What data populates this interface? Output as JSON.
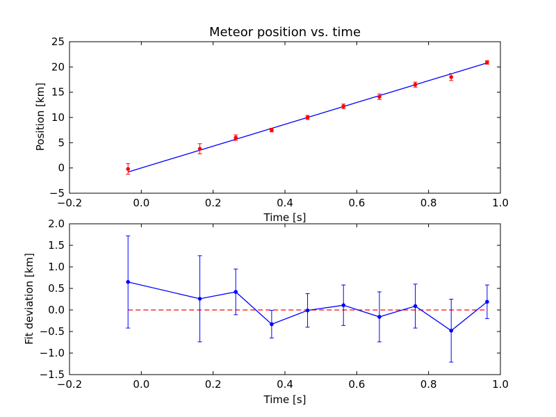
{
  "chart_data": [
    {
      "type": "line",
      "title": "Meteor position vs. time",
      "xlabel": "Time [s]",
      "ylabel": "Position [km]",
      "xlim": [
        -0.2,
        1.0
      ],
      "ylim": [
        -5,
        25
      ],
      "xticks": [
        "−0.2",
        "0.0",
        "0.2",
        "0.4",
        "0.6",
        "0.8",
        "1.0"
      ],
      "yticks": [
        "−5",
        "0",
        "5",
        "10",
        "15",
        "20",
        "25"
      ],
      "grid": false,
      "colors": {
        "data": "#ff0000",
        "fit": "#0000ff"
      },
      "series": [
        {
          "kind": "errorbar",
          "x": [
            -0.037,
            0.163,
            0.263,
            0.363,
            0.463,
            0.563,
            0.663,
            0.763,
            0.863,
            0.963
          ],
          "y": [
            -0.2,
            3.8,
            6.0,
            7.5,
            10.0,
            12.2,
            14.1,
            16.5,
            18.0,
            20.9
          ],
          "err": [
            1.05,
            1.0,
            0.55,
            0.35,
            0.4,
            0.45,
            0.55,
            0.5,
            0.7,
            0.35
          ]
        },
        {
          "kind": "fit",
          "x": [
            -0.037,
            0.963
          ],
          "y": [
            -0.8,
            20.8
          ]
        }
      ]
    },
    {
      "type": "line",
      "title": "",
      "xlabel": "Time [s]",
      "ylabel": "Fit deviation [km]",
      "xlim": [
        -0.2,
        1.0
      ],
      "ylim": [
        -1.5,
        2.0
      ],
      "xticks": [
        "−0.2",
        "0.0",
        "0.2",
        "0.4",
        "0.6",
        "0.8",
        "1.0"
      ],
      "yticks": [
        "−1.5",
        "−1.0",
        "−0.5",
        "0.0",
        "0.5",
        "1.0",
        "1.5",
        "2.0"
      ],
      "grid": false,
      "colors": {
        "data": "#0000ff",
        "zero": "#ff0000"
      },
      "series": [
        {
          "kind": "errorbar-line",
          "x": [
            -0.037,
            0.163,
            0.263,
            0.363,
            0.463,
            0.563,
            0.663,
            0.763,
            0.863,
            0.963
          ],
          "y": [
            0.65,
            0.26,
            0.42,
            -0.33,
            -0.01,
            0.11,
            -0.16,
            0.09,
            -0.48,
            0.19
          ],
          "err": [
            1.07,
            1.0,
            0.53,
            0.32,
            0.39,
            0.47,
            0.58,
            0.51,
            0.73,
            0.39
          ]
        },
        {
          "kind": "zero-line",
          "x": [
            -0.037,
            0.963
          ],
          "y": [
            0.0,
            0.0
          ]
        }
      ]
    }
  ]
}
